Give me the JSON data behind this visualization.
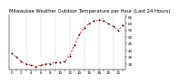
{
  "title": "Milwaukee Weather Outdoor Temperature per Hour (Last 24 Hours)",
  "hours": [
    0,
    1,
    2,
    3,
    4,
    5,
    6,
    7,
    8,
    9,
    10,
    11,
    12,
    13,
    14,
    15,
    16,
    17,
    18,
    19,
    20,
    21,
    22,
    23
  ],
  "temps": [
    38,
    35,
    32,
    30,
    29,
    28,
    29,
    30,
    30,
    31,
    31,
    32,
    36,
    44,
    52,
    57,
    60,
    62,
    63,
    62,
    60,
    58,
    55,
    59
  ],
  "line_color": "#dd0000",
  "marker_color": "#000000",
  "bg_color": "#ffffff",
  "grid_color": "#aaaaaa",
  "title_color": "#000000",
  "title_fontsize": 3.8,
  "tick_fontsize": 3.0,
  "ylim": [
    26,
    67
  ],
  "yticks": [
    30,
    35,
    40,
    45,
    50,
    55,
    60,
    65
  ],
  "ytick_labels": [
    "30",
    "35",
    "40",
    "45",
    "50",
    "55",
    "60",
    "65"
  ],
  "vgrid_hours": [
    0,
    3,
    6,
    9,
    12,
    15,
    18,
    21
  ],
  "xlim": [
    -0.5,
    23.5
  ]
}
